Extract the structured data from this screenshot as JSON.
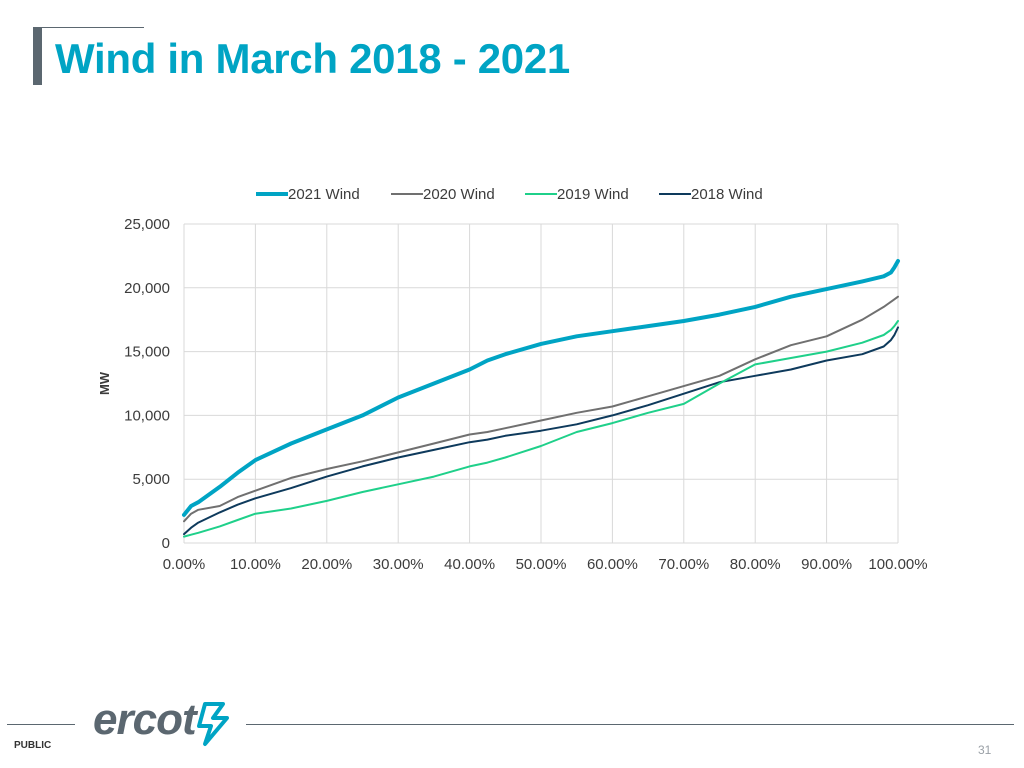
{
  "slide": {
    "title": "Wind in March 2018 - 2021",
    "classification": "PUBLIC",
    "page_number": "31",
    "logo_text": "ercot"
  },
  "colors": {
    "title": "#00a4c4",
    "accent_gray": "#5b6770",
    "series_2021": "#00a4c4",
    "series_2020": "#707070",
    "series_2019": "#1fd08a",
    "series_2018": "#0e3a5c"
  },
  "chart_data": {
    "type": "line",
    "title": "",
    "xlabel": "",
    "ylabel": "MW",
    "xlim": [
      0,
      100
    ],
    "ylim": [
      0,
      25000
    ],
    "x_tick_labels": [
      "0.00%",
      "10.00%",
      "20.00%",
      "30.00%",
      "40.00%",
      "50.00%",
      "60.00%",
      "70.00%",
      "80.00%",
      "90.00%",
      "100.00%"
    ],
    "y_tick_labels": [
      "0",
      "5,000",
      "10,000",
      "15,000",
      "20,000",
      "25,000"
    ],
    "y_ticks": [
      0,
      5000,
      10000,
      15000,
      20000,
      25000
    ],
    "grid": true,
    "legend_position": "top",
    "x": [
      0,
      1,
      2,
      5,
      7.5,
      10,
      15,
      20,
      25,
      30,
      35,
      40,
      42.5,
      45,
      50,
      55,
      60,
      65,
      70,
      75,
      80,
      85,
      90,
      95,
      98,
      99,
      99.5,
      100
    ],
    "series": [
      {
        "name": "2021 Wind",
        "color": "#00a4c4",
        "values": [
          2200,
          2900,
          3200,
          4400,
          5500,
          6500,
          7800,
          8900,
          10000,
          11400,
          12500,
          13600,
          14300,
          14800,
          15600,
          16200,
          16600,
          17000,
          17400,
          17900,
          18500,
          19300,
          19900,
          20500,
          20900,
          21200,
          21600,
          22100
        ]
      },
      {
        "name": "2020 Wind",
        "color": "#707070",
        "values": [
          1700,
          2300,
          2600,
          2900,
          3600,
          4100,
          5100,
          5800,
          6400,
          7100,
          7800,
          8500,
          8700,
          9000,
          9600,
          10200,
          10700,
          11500,
          12300,
          13100,
          14400,
          15500,
          16200,
          17500,
          18500,
          18900,
          19100,
          19300
        ]
      },
      {
        "name": "2019 Wind",
        "color": "#1fd08a",
        "values": [
          500,
          650,
          800,
          1300,
          1800,
          2300,
          2700,
          3300,
          4000,
          4600,
          5200,
          6000,
          6300,
          6700,
          7600,
          8700,
          9400,
          10200,
          10900,
          12500,
          14000,
          14500,
          15000,
          15700,
          16300,
          16700,
          17000,
          17400
        ]
      },
      {
        "name": "2018 Wind",
        "color": "#0e3a5c",
        "values": [
          700,
          1200,
          1600,
          2400,
          3000,
          3500,
          4300,
          5200,
          6000,
          6700,
          7300,
          7900,
          8100,
          8400,
          8800,
          9300,
          10000,
          10800,
          11700,
          12600,
          13100,
          13600,
          14300,
          14800,
          15400,
          15900,
          16300,
          16900
        ]
      }
    ]
  }
}
